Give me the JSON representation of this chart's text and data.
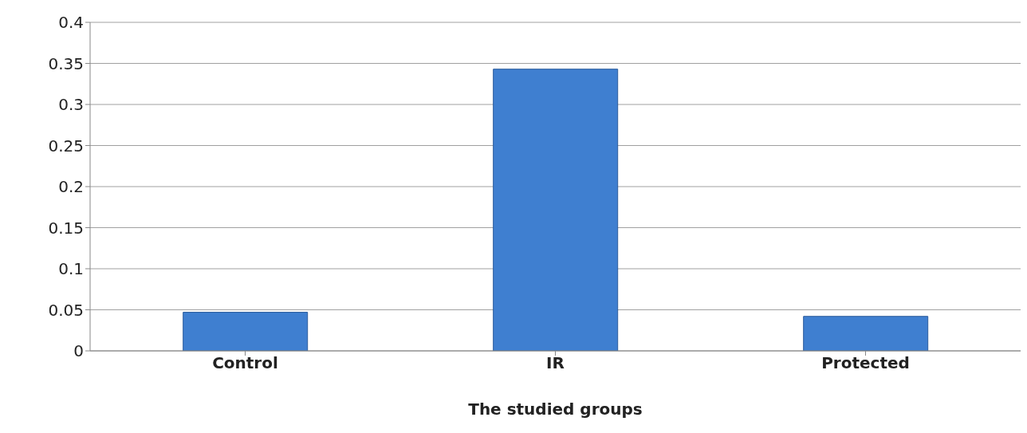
{
  "chart_data": {
    "type": "bar",
    "xlabel": "The studied groups",
    "categories": [
      "Control",
      "IR",
      "Protected"
    ],
    "values": [
      0.047,
      0.343,
      0.042
    ],
    "color": "#3f7fd0",
    "ylim": [
      0,
      0.4
    ],
    "yticks": [
      0,
      0.05,
      0.1,
      0.15,
      0.2,
      0.25,
      0.3,
      0.35,
      0.4
    ],
    "grid": "y"
  }
}
